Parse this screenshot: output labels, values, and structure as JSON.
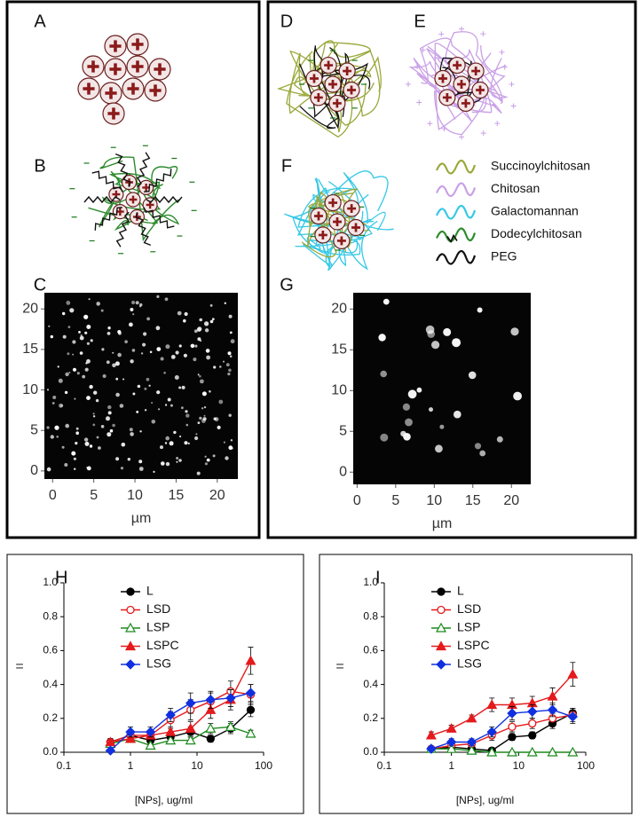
{
  "figure": {
    "panels": [
      "A",
      "B",
      "C",
      "D",
      "E",
      "F",
      "G"
    ],
    "polymers": [
      {
        "name": "Succinoylchitosan",
        "color": "#9aa83a"
      },
      {
        "name": "Chitosan",
        "color": "#c9a0e6"
      },
      {
        "name": "Galactomannan",
        "color": "#35c8e6"
      },
      {
        "name": "Dodecylchitosan",
        "color": "#2e8b2e"
      },
      {
        "name": "PEG",
        "color": "#111111"
      }
    ],
    "images": [
      {
        "xlabel": "µm",
        "xlim": [
          -1,
          22.5
        ],
        "ylim": [
          -1,
          22
        ],
        "xticks": [
          0,
          5,
          10,
          15,
          20
        ],
        "yticks": [
          0,
          5,
          10,
          15,
          20
        ]
      },
      {
        "xlabel": "µm",
        "xlim": [
          -0.5,
          22.5
        ],
        "ylim": [
          -1.5,
          22
        ],
        "xticks": [
          0,
          5,
          10,
          15,
          20
        ],
        "yticks": [
          0,
          5,
          10,
          15,
          20
        ]
      }
    ]
  },
  "chart_data": [
    {
      "type": "line",
      "panel_label": "H",
      "ylabel": "=",
      "xlabel": "[NPs], ug/ml",
      "log_x": true,
      "xlim": [
        0.1,
        100
      ],
      "xticks": [
        0.1,
        1,
        10,
        100
      ],
      "ylim": [
        0,
        1
      ],
      "yticks": [
        {
          "value": 0,
          "label": "0.0"
        },
        {
          "value": 0.2,
          "label": "0.2"
        },
        {
          "value": 0.4,
          "label": "0.4"
        },
        {
          "value": 0.6,
          "label": "0.6"
        },
        {
          "value": 0.8,
          "label": "0.8"
        },
        {
          "value": 1,
          "label": "1.0"
        }
      ],
      "x": [
        0.5,
        1,
        2,
        4,
        8,
        16,
        32,
        64
      ],
      "series": [
        {
          "name": "L",
          "color": "#000000",
          "marker": "circle",
          "values": [
            0.06,
            0.1,
            0.07,
            0.09,
            0.12,
            0.08,
            0.14,
            0.25
          ],
          "errors": [
            0.02,
            0.03,
            0.02,
            0.03,
            0.03,
            0.02,
            0.03,
            0.04
          ]
        },
        {
          "name": "LSD",
          "color": "#e41a1c",
          "marker": "open-circle",
          "values": [
            0.06,
            0.1,
            0.1,
            0.19,
            0.25,
            0.3,
            0.36,
            0.34
          ],
          "errors": [
            0.02,
            0.03,
            0.03,
            0.05,
            0.06,
            0.05,
            0.06,
            0.06
          ]
        },
        {
          "name": "LSP",
          "color": "#1a8a1a",
          "marker": "open-triangle",
          "values": [
            0.05,
            0.08,
            0.04,
            0.07,
            0.07,
            0.14,
            0.15,
            0.11
          ],
          "errors": [
            0.02,
            0.02,
            0.02,
            0.02,
            0.02,
            0.03,
            0.03,
            0.02
          ]
        },
        {
          "name": "LSPC",
          "color": "#e41a1c",
          "marker": "triangle",
          "values": [
            0.06,
            0.08,
            0.1,
            0.12,
            0.14,
            0.25,
            0.31,
            0.54
          ],
          "errors": [
            0.02,
            0.02,
            0.03,
            0.03,
            0.04,
            0.05,
            0.06,
            0.08
          ]
        },
        {
          "name": "LSG",
          "color": "#1030e0",
          "marker": "diamond",
          "values": [
            0.01,
            0.12,
            0.12,
            0.22,
            0.29,
            0.31,
            0.32,
            0.35
          ],
          "errors": [
            0.01,
            0.03,
            0.03,
            0.04,
            0.06,
            0.05,
            0.05,
            0.05
          ]
        }
      ]
    },
    {
      "type": "line",
      "panel_label": "I",
      "ylabel": "=",
      "xlabel": "[NPs], ug/ml",
      "log_x": true,
      "xlim": [
        0.1,
        100
      ],
      "xticks": [
        0.1,
        1,
        10,
        100
      ],
      "ylim": [
        0,
        1
      ],
      "yticks": [
        {
          "value": 0,
          "label": "0.0"
        },
        {
          "value": 0.2,
          "label": "0.2"
        },
        {
          "value": 0.4,
          "label": "0.4"
        },
        {
          "value": 0.6,
          "label": "0.6"
        },
        {
          "value": 0.8,
          "label": "0.8"
        },
        {
          "value": 1,
          "label": "1.0"
        }
      ],
      "x": [
        0.5,
        1,
        2,
        4,
        8,
        16,
        32,
        64
      ],
      "series": [
        {
          "name": "L",
          "color": "#000000",
          "marker": "circle",
          "values": [
            0.02,
            0.03,
            0.02,
            0.01,
            0.09,
            0.1,
            0.17,
            0.23
          ],
          "errors": [
            0.01,
            0.01,
            0.01,
            0.01,
            0.02,
            0.02,
            0.03,
            0.03
          ]
        },
        {
          "name": "LSD",
          "color": "#e41a1c",
          "marker": "open-circle",
          "values": [
            0.02,
            0.04,
            0.05,
            0.1,
            0.15,
            0.17,
            0.2,
            0.22
          ],
          "errors": [
            0.01,
            0.02,
            0.02,
            0.03,
            0.03,
            0.03,
            0.03,
            0.04
          ]
        },
        {
          "name": "LSP",
          "color": "#1a8a1a",
          "marker": "open-triangle",
          "values": [
            0.02,
            0.02,
            0.01,
            0,
            0,
            0,
            0,
            0
          ],
          "errors": [
            0.01,
            0.01,
            0.01,
            0.005,
            0.005,
            0.005,
            0.005,
            0.005
          ]
        },
        {
          "name": "LSPC",
          "color": "#e41a1c",
          "marker": "triangle",
          "values": [
            0.1,
            0.14,
            0.2,
            0.28,
            0.28,
            0.29,
            0.33,
            0.46
          ],
          "errors": [
            0.02,
            0.02,
            0.02,
            0.04,
            0.04,
            0.04,
            0.05,
            0.07
          ]
        },
        {
          "name": "LSG",
          "color": "#1030e0",
          "marker": "diamond",
          "values": [
            0.02,
            0.06,
            0.06,
            0.12,
            0.23,
            0.24,
            0.25,
            0.21
          ],
          "errors": [
            0.01,
            0.02,
            0.02,
            0.03,
            0.04,
            0.04,
            0.04,
            0.04
          ]
        }
      ]
    }
  ]
}
